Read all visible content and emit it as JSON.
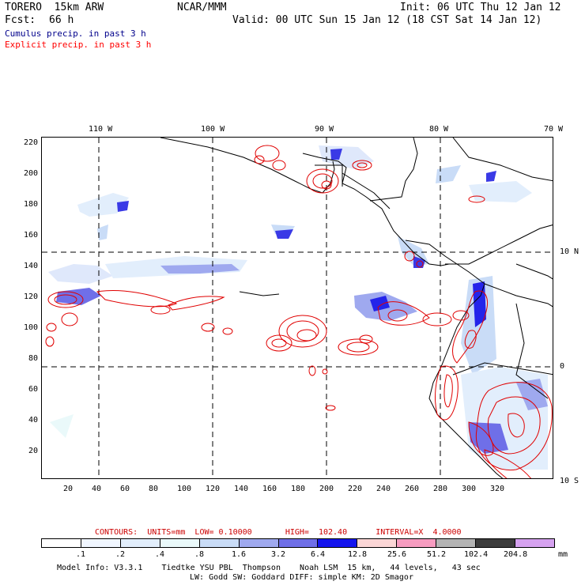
{
  "header": {
    "model": "TORERO  15km ARW",
    "org": "NCAR/MMM",
    "init": "Init: 06 UTC Thu 12 Jan 12",
    "fcst_label": "Fcst:",
    "fcst_value": "66 h",
    "valid": "Valid: 00 UTC Sun 15 Jan 12 (18 CST Sat 14 Jan 12)",
    "field1": "Cumulus precip. in past 3 h",
    "field2": "Explicit precip. in past 3 h",
    "field1_color": "#00008b",
    "field2_color": "#ff0000"
  },
  "axes": {
    "lon_labels": [
      "110 W",
      "100 W",
      "90 W",
      "80 W",
      "70 W"
    ],
    "lat_labels": [
      "10 N",
      "0",
      "10 S"
    ],
    "x_ticks": [
      "20",
      "40",
      "60",
      "80",
      "100",
      "120",
      "140",
      "160",
      "180",
      "200",
      "220",
      "240",
      "260",
      "280",
      "300",
      "320"
    ],
    "y_ticks": [
      "220",
      "200",
      "180",
      "160",
      "140",
      "120",
      "100",
      "80",
      "60",
      "40",
      "20"
    ]
  },
  "contours_line": "CONTOURS:  UNITS=mm  LOW= 0.10000       HIGH=  102.40      INTERVAL=X  4.0000",
  "legend": {
    "colors": [
      "#ffffff",
      "#f0f6ff",
      "#e2eefc",
      "#eaf9fa",
      "#c9dcf7",
      "#9fa9ef",
      "#6f6fe8",
      "#1414ee",
      "#fbd6d6",
      "#f79cc0",
      "#b4b4b4",
      "#3c3c3c",
      "#d6a2f0"
    ],
    "labels": [
      ".1",
      ".2",
      ".4",
      ".8",
      "1.6",
      "3.2",
      "6.4",
      "12.8",
      "25.6",
      "51.2",
      "102.4",
      "204.8"
    ],
    "unit": "mm"
  },
  "footer": {
    "line1": "Model Info: V3.3.1    Tiedtke YSU PBL  Thompson    Noah LSM  15 km,   44 levels,   43 sec",
    "line2": "LW: Godd SW: Goddard DIFF: simple KM: 2D Smagor"
  }
}
